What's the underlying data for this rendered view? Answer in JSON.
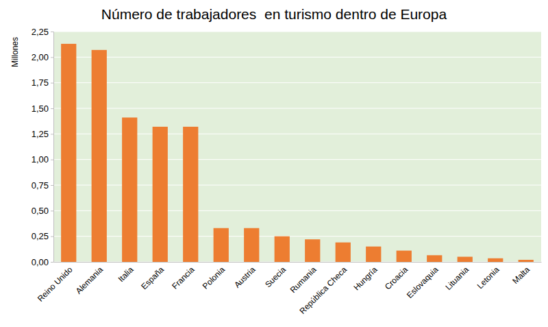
{
  "chart_data": {
    "type": "bar",
    "title": "Número de trabajadores  en turismo dentro de Europa",
    "y_label": "Millones",
    "categories": [
      "Reino Unido",
      "Alemania",
      "Italia",
      "España",
      "Francia",
      "Polonia",
      "Austria",
      "Suecia",
      "Rumania",
      "República Checa",
      "Hungría",
      "Croacia",
      "Eslovaquia",
      "Lituania",
      "Letonia",
      "Malta"
    ],
    "values": [
      2.13,
      2.07,
      1.41,
      1.32,
      1.32,
      0.33,
      0.33,
      0.25,
      0.22,
      0.19,
      0.15,
      0.11,
      0.065,
      0.05,
      0.035,
      0.02
    ],
    "color": "#ed7d31",
    "ylim": [
      0,
      2.25
    ],
    "yticks": [
      {
        "value": 0,
        "label": "0,00"
      },
      {
        "value": 0.25,
        "label": "0,25"
      },
      {
        "value": 0.5,
        "label": "0,50"
      },
      {
        "value": 0.75,
        "label": "0,75"
      },
      {
        "value": 1,
        "label": "1,00"
      },
      {
        "value": 1.25,
        "label": "1,25"
      },
      {
        "value": 1.5,
        "label": "1,50"
      },
      {
        "value": 1.75,
        "label": "1,75"
      },
      {
        "value": 2,
        "label": "2,00"
      },
      {
        "value": 2.25,
        "label": "2,25"
      }
    ],
    "grid": true
  }
}
